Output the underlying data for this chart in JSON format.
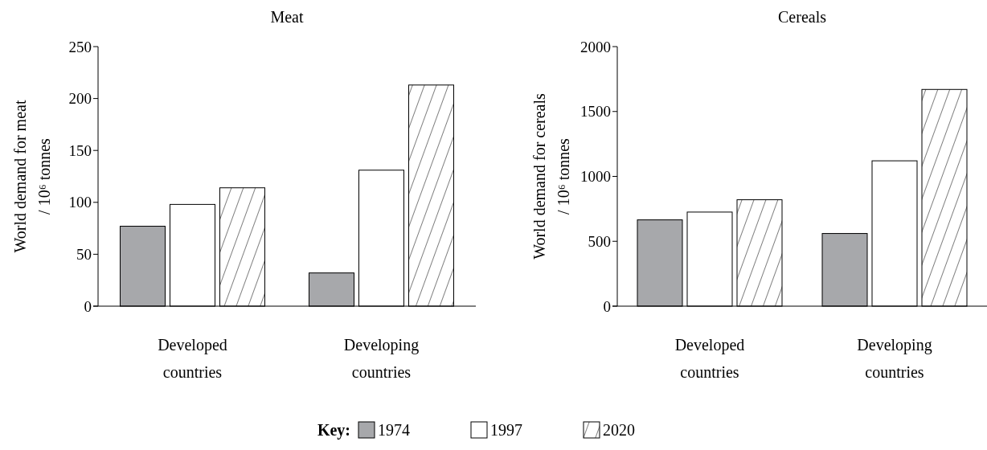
{
  "chart_data": [
    {
      "type": "bar",
      "title": "Meat",
      "ylabel": "World demand for meat / 10⁶ tonnes",
      "categories": [
        "Developed countries",
        "Developing countries"
      ],
      "ylim": [
        0,
        250
      ],
      "yticks": [
        0,
        50,
        100,
        150,
        200,
        250
      ],
      "legend": "bottom",
      "legend_title": "Key:",
      "series": [
        {
          "name": "1974",
          "color": "#a7a8ab",
          "values": [
            77,
            32
          ]
        },
        {
          "name": "1997",
          "color": "#ffffff",
          "values": [
            98,
            131
          ]
        },
        {
          "name": "2020",
          "color": "#000000",
          "values": [
            114,
            213
          ]
        }
      ]
    },
    {
      "type": "bar",
      "title": "Cereals",
      "ylabel": "World demand for cereals / 10⁶ tonnes",
      "categories": [
        "Developed countries",
        "Developing countries"
      ],
      "ylim": [
        0,
        2000
      ],
      "yticks": [
        0,
        500,
        1000,
        1500,
        2000
      ],
      "series": [
        {
          "color": "#a7a8ab",
          "values": [
            665,
            560
          ]
        },
        {
          "color": "#ffffff",
          "values": [
            725,
            1120
          ]
        },
        {
          "color": "#000000",
          "values": [
            820,
            1670
          ]
        }
      ]
    }
  ]
}
